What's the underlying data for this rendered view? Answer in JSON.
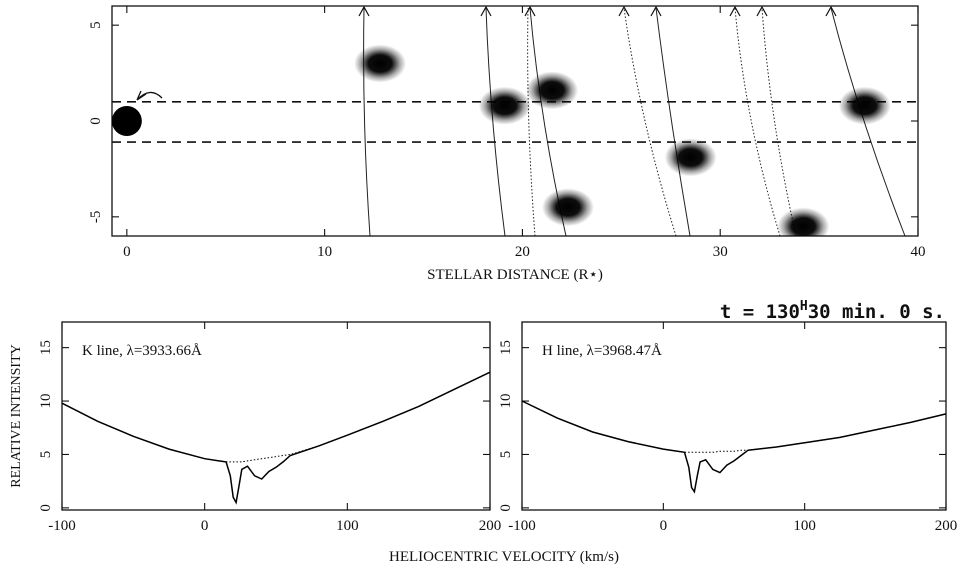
{
  "chart_data": [
    {
      "type": "scatter",
      "xlabel": "STELLAR DISTANCE (R⋆)",
      "xlim": [
        -0.75,
        40
      ],
      "xticks": [
        0,
        10,
        20,
        30,
        40
      ],
      "ylim": [
        -6,
        6
      ],
      "yticks": [
        -5,
        0,
        5
      ],
      "star": {
        "x": 0,
        "y": 0,
        "color": "#000000"
      },
      "points": {
        "x": [
          12.5,
          18.8,
          21.2,
          22.0,
          28.2,
          33.9,
          37.0
        ],
        "y": [
          3.0,
          0.8,
          1.6,
          -4.5,
          -1.9,
          -5.5,
          0.8
        ],
        "color": "#000000"
      },
      "reference_lines": [
        1.0,
        -1.1
      ],
      "annotation": [
        "t = 130",
        "H",
        "30 min. 0 s."
      ]
    },
    {
      "type": "line",
      "label": "K line, λ=3933.66Å",
      "ylabel": "RELATIVE INTENSITY",
      "xlabel": "HELIOCENTRIC VELOCITY (km/s)",
      "xlim": [
        -100,
        200
      ],
      "xticks": [
        -100,
        0,
        100,
        200
      ],
      "ylim": [
        -0.2,
        17.4
      ],
      "yticks": [
        0,
        5,
        10,
        15
      ],
      "x": [
        -100,
        -75,
        -50,
        -25,
        0,
        10,
        15,
        18,
        20,
        22,
        24,
        26,
        30,
        35,
        40,
        45,
        50,
        55,
        60,
        80,
        100,
        125,
        150,
        175,
        200
      ],
      "series": [
        {
          "color": "#000000",
          "style": "solid",
          "values": [
            9.8,
            8.1,
            6.7,
            5.5,
            4.6,
            4.4,
            4.3,
            3.0,
            1.0,
            0.5,
            2.0,
            3.6,
            3.9,
            3.0,
            2.7,
            3.4,
            3.8,
            4.3,
            4.9,
            5.8,
            6.8,
            8.1,
            9.5,
            11.1,
            12.7
          ]
        },
        {
          "color": "#000000",
          "style": "dotted",
          "values": [
            9.8,
            8.1,
            6.7,
            5.5,
            4.6,
            4.4,
            4.3,
            4.3,
            4.3,
            4.3,
            4.3,
            4.3,
            4.4,
            4.5,
            4.6,
            4.7,
            4.8,
            4.9,
            5.0,
            5.8,
            6.8,
            8.1,
            9.5,
            11.1,
            12.7
          ]
        }
      ]
    },
    {
      "type": "line",
      "label": "H line, λ=3968.47Å",
      "xlim": [
        -100,
        200
      ],
      "xticks": [
        -100,
        0,
        100,
        200
      ],
      "ylim": [
        -0.2,
        17.4
      ],
      "yticks": [
        0,
        5,
        10,
        15
      ],
      "x": [
        -100,
        -75,
        -50,
        -25,
        0,
        10,
        15,
        18,
        20,
        22,
        24,
        26,
        30,
        35,
        40,
        45,
        50,
        55,
        60,
        80,
        100,
        125,
        150,
        175,
        200
      ],
      "series": [
        {
          "color": "#000000",
          "style": "solid",
          "values": [
            10.0,
            8.4,
            7.1,
            6.2,
            5.5,
            5.3,
            5.2,
            3.8,
            1.9,
            1.5,
            3.0,
            4.3,
            4.5,
            3.6,
            3.3,
            4.0,
            4.4,
            4.9,
            5.4,
            5.7,
            6.1,
            6.6,
            7.3,
            8.0,
            8.8
          ]
        },
        {
          "color": "#000000",
          "style": "dotted",
          "values": [
            10.0,
            8.4,
            7.1,
            6.2,
            5.5,
            5.3,
            5.2,
            5.2,
            5.2,
            5.2,
            5.2,
            5.2,
            5.2,
            5.2,
            5.3,
            5.3,
            5.3,
            5.4,
            5.4,
            5.7,
            6.1,
            6.6,
            7.3,
            8.0,
            8.8
          ]
        }
      ]
    }
  ]
}
